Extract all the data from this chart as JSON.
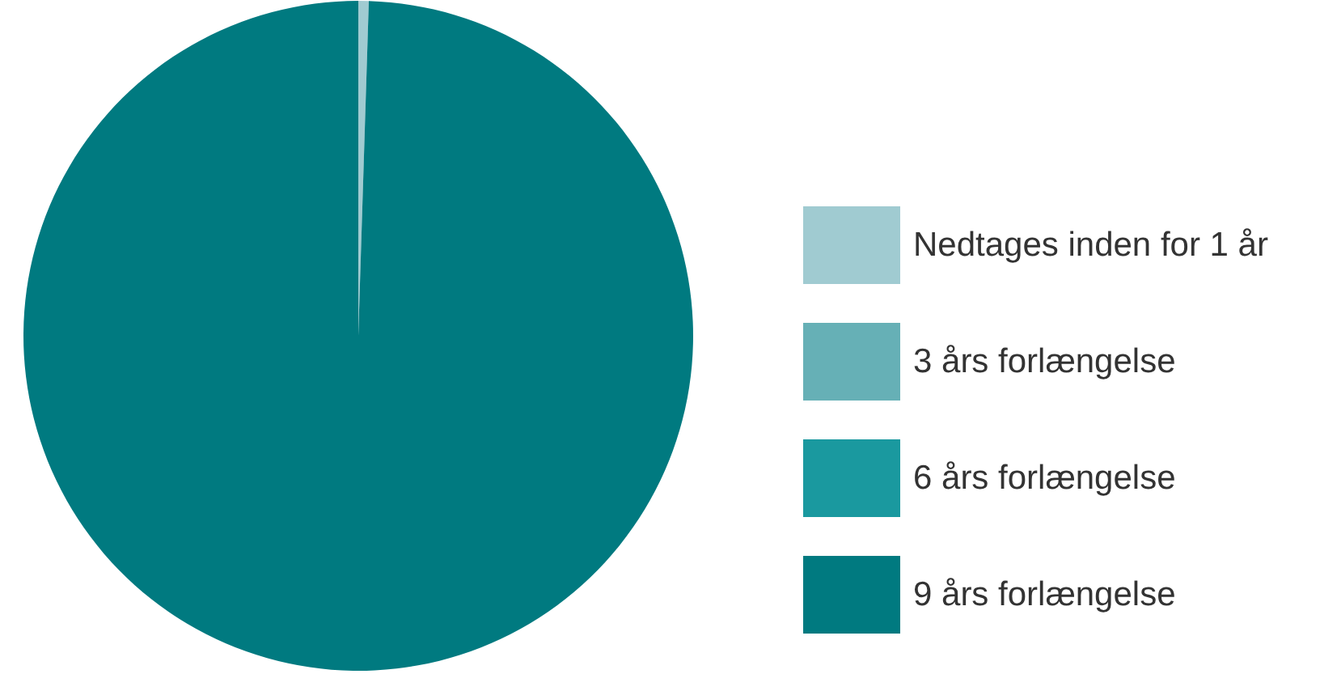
{
  "chart_data": {
    "type": "pie",
    "categories": [
      "Nedtages inden for 1 år",
      "3 års forlængelse",
      "6 års forlængelse",
      "9 års forlængelse"
    ],
    "values": [
      0.5,
      0,
      0,
      99.5
    ],
    "colors": [
      "#a0cbd1",
      "#66b0b6",
      "#1a999f",
      "#007a80"
    ],
    "legend": "right"
  }
}
